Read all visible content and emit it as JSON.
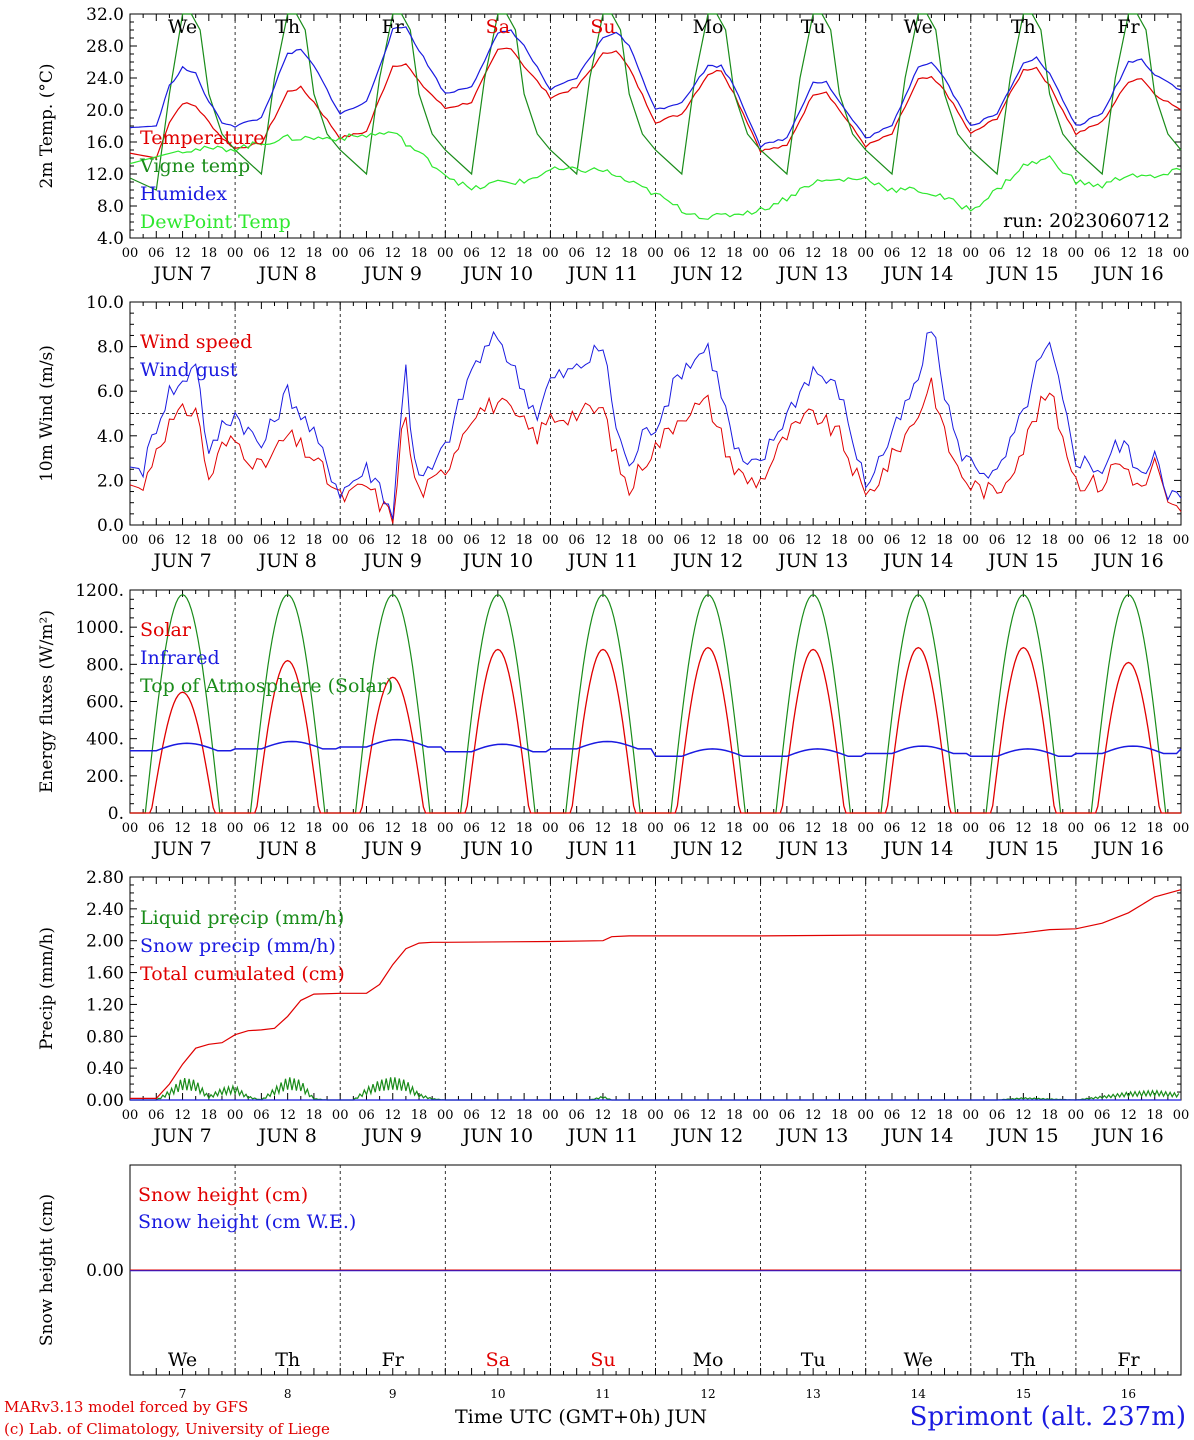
{
  "days": [
    {
      "dow": "We",
      "date": "JUN 7",
      "num": "7",
      "weekend": false
    },
    {
      "dow": "Th",
      "date": "JUN 8",
      "num": "8",
      "weekend": false
    },
    {
      "dow": "Fr",
      "date": "JUN 9",
      "num": "9",
      "weekend": false
    },
    {
      "dow": "Sa",
      "date": "JUN 10",
      "num": "10",
      "weekend": true
    },
    {
      "dow": "Su",
      "date": "JUN 11",
      "num": "11",
      "weekend": true
    },
    {
      "dow": "Mo",
      "date": "JUN 12",
      "num": "12",
      "weekend": false
    },
    {
      "dow": "Tu",
      "date": "JUN 13",
      "num": "13",
      "weekend": false
    },
    {
      "dow": "We",
      "date": "JUN 14",
      "num": "14",
      "weekend": false
    },
    {
      "dow": "Th",
      "date": "JUN 15",
      "num": "15",
      "weekend": false
    },
    {
      "dow": "Fr",
      "date": "JUN 16",
      "num": "16",
      "weekend": false
    }
  ],
  "hour_ticks": [
    "00",
    "06",
    "12",
    "18"
  ],
  "colors": {
    "red": "#e00000",
    "blue": "#1a1ae0",
    "green": "#1a8c1a",
    "lightgreen": "#2ee82e",
    "purple": "#8000a0"
  },
  "footer": {
    "credit_line1": "MARv3.13 model forced by GFS",
    "credit_line2": "(c) Lab. of Climatology, University of Liege",
    "x_axis_title": "Time UTC (GMT+0h)",
    "month": "JUN",
    "station": "Sprimont (alt. 237m)"
  },
  "chart_data": [
    {
      "type": "line",
      "ylabel": "2m Temp. (°C)",
      "ylim": [
        4,
        32
      ],
      "yticks": [
        "4.0",
        "8.0",
        "12.0",
        "16.0",
        "20.0",
        "24.0",
        "28.0",
        "32.0"
      ],
      "run_label": "run: 2023060712",
      "x_unit": "hours since JUN 7 00 UTC",
      "series": [
        {
          "name": "Temperature",
          "color": "#e00000",
          "x": [
            0,
            6,
            9,
            12,
            15,
            18,
            21,
            24,
            30,
            36,
            39,
            42,
            48,
            54,
            60,
            63,
            66,
            72,
            78,
            84,
            87,
            90,
            96,
            102,
            108,
            111,
            114,
            120,
            126,
            132,
            135,
            138,
            144,
            150,
            156,
            159,
            162,
            168,
            174,
            180,
            183,
            186,
            192,
            198,
            204,
            207,
            210,
            216,
            222,
            228,
            231,
            234,
            240
          ],
          "y": [
            14.6,
            14.0,
            18.5,
            20.9,
            20.5,
            18.5,
            16.5,
            15.2,
            15.8,
            22.3,
            22.8,
            21.0,
            16.5,
            17.3,
            25.5,
            25.8,
            23.5,
            20.2,
            21.0,
            27.5,
            27.8,
            25.5,
            21.6,
            22.8,
            27.0,
            27.5,
            25.2,
            18.5,
            19.5,
            24.5,
            25.0,
            22.0,
            14.9,
            15.5,
            22.0,
            22.3,
            20.0,
            15.5,
            17.0,
            23.8,
            24.0,
            22.5,
            17.0,
            19.0,
            25.0,
            25.3,
            23.0,
            17.0,
            18.5,
            23.6,
            24.0,
            22.0,
            20.0
          ]
        },
        {
          "name": "Vigne temp",
          "color": "#1a8c1a",
          "x": [
            0,
            6,
            9,
            12,
            14,
            16,
            18,
            21,
            24,
            30,
            33,
            36,
            38,
            40,
            42,
            45,
            48,
            54,
            57,
            60,
            62,
            64,
            66,
            69,
            72,
            78,
            81,
            84,
            86,
            88,
            90,
            93,
            96,
            102,
            105,
            108,
            110,
            112,
            114,
            117,
            120,
            126,
            129,
            132,
            134,
            136,
            138,
            141,
            144,
            150,
            153,
            156,
            158,
            160,
            162,
            165,
            168,
            174,
            177,
            180,
            182,
            184,
            186,
            189,
            192,
            198,
            201,
            204,
            206,
            208,
            210,
            213,
            216,
            222,
            225,
            228,
            230,
            232,
            234,
            237,
            240
          ],
          "y": [
            11.5,
            10.0,
            22.0,
            32.0,
            33.0,
            30.0,
            22.0,
            17.0,
            15.0,
            12.0,
            24.0,
            32.0,
            33.0,
            30.0,
            22.0,
            17.0,
            15.0,
            12.0,
            24.0,
            32.0,
            33.0,
            30.0,
            22.0,
            17.0,
            15.0,
            12.0,
            24.0,
            32.0,
            33.0,
            30.0,
            22.0,
            17.0,
            15.0,
            12.0,
            24.0,
            32.0,
            33.0,
            30.0,
            22.0,
            17.0,
            15.0,
            12.0,
            24.0,
            32.0,
            33.0,
            30.0,
            22.0,
            17.0,
            15.0,
            12.0,
            24.0,
            32.0,
            33.0,
            30.0,
            22.0,
            17.0,
            15.0,
            12.0,
            24.0,
            32.0,
            33.0,
            30.0,
            22.0,
            17.0,
            15.0,
            12.0,
            24.0,
            32.0,
            33.0,
            30.0,
            22.0,
            17.0,
            15.0,
            12.0,
            24.0,
            32.0,
            33.0,
            30.0,
            22.0,
            17.0,
            15.0
          ]
        },
        {
          "name": "Humidex",
          "color": "#1a1ae0",
          "x": [
            0,
            6,
            9,
            12,
            15,
            18,
            21,
            24,
            30,
            36,
            39,
            42,
            48,
            54,
            60,
            63,
            66,
            72,
            78,
            84,
            87,
            90,
            96,
            102,
            108,
            111,
            114,
            120,
            126,
            132,
            135,
            138,
            144,
            150,
            156,
            159,
            162,
            168,
            174,
            180,
            183,
            186,
            192,
            198,
            204,
            207,
            210,
            216,
            222,
            228,
            231,
            234,
            240
          ],
          "y": [
            17.8,
            18.0,
            23.0,
            25.3,
            24.5,
            21.0,
            18.5,
            18.0,
            19.0,
            27.0,
            27.5,
            25.5,
            19.5,
            21.0,
            30.0,
            30.4,
            27.5,
            22.0,
            23.0,
            29.5,
            30.0,
            28.0,
            22.5,
            24.0,
            29.0,
            29.8,
            28.0,
            20.0,
            21.0,
            25.5,
            25.5,
            23.0,
            15.5,
            16.5,
            23.5,
            23.5,
            21.0,
            16.5,
            18.0,
            25.5,
            26.0,
            24.0,
            18.0,
            19.5,
            26.0,
            26.5,
            24.5,
            18.0,
            19.5,
            26.0,
            26.3,
            24.5,
            22.5
          ]
        },
        {
          "name": "DewPoint Temp",
          "color": "#2ee82e",
          "x": [
            0,
            12,
            24,
            36,
            48,
            60,
            72,
            78,
            84,
            90,
            96,
            108,
            120,
            126,
            132,
            138,
            144,
            150,
            156,
            168,
            174,
            180,
            186,
            192,
            198,
            204,
            210,
            216,
            222,
            228,
            234,
            240
          ],
          "y": [
            13.3,
            15.0,
            15.2,
            16.5,
            16.5,
            17.2,
            12.0,
            10.0,
            11.0,
            11.0,
            12.5,
            12.5,
            9.5,
            7.5,
            6.5,
            7.0,
            7.5,
            9.0,
            11.0,
            11.5,
            10.0,
            10.0,
            9.0,
            7.5,
            10.0,
            13.0,
            14.0,
            11.0,
            10.5,
            12.0,
            11.5,
            12.5
          ]
        }
      ]
    },
    {
      "type": "line",
      "ylabel": "10m Wind (m/s)",
      "ylim": [
        0,
        10
      ],
      "yticks": [
        "0.0",
        "2.0",
        "4.0",
        "6.0",
        "8.0",
        "10.0"
      ],
      "reference_line": 5.0,
      "x_unit": "hours since JUN 7 00 UTC",
      "series": [
        {
          "name": "Wind speed",
          "color": "#e00000",
          "x": [
            0,
            3,
            6,
            9,
            12,
            15,
            18,
            21,
            24,
            30,
            36,
            42,
            48,
            51,
            54,
            57,
            60,
            62,
            63,
            64,
            66,
            69,
            72,
            78,
            84,
            90,
            93,
            96,
            102,
            108,
            111,
            114,
            117,
            120,
            126,
            132,
            135,
            138,
            141,
            144,
            150,
            156,
            162,
            168,
            174,
            180,
            183,
            186,
            189,
            192,
            198,
            204,
            207,
            210,
            216,
            222,
            225,
            228,
            231,
            234,
            237,
            240
          ],
          "y": [
            1.8,
            1.6,
            3.5,
            4.5,
            5.0,
            5.3,
            2.0,
            3.5,
            3.8,
            2.5,
            4.0,
            3.0,
            1.2,
            1.4,
            1.8,
            1.0,
            0.3,
            4.0,
            5.0,
            3.0,
            1.5,
            1.8,
            2.5,
            5.0,
            5.5,
            4.5,
            4.0,
            4.8,
            5.0,
            5.2,
            3.0,
            1.5,
            2.8,
            3.5,
            5.0,
            5.5,
            4.0,
            2.5,
            2.0,
            2.0,
            4.0,
            5.0,
            4.0,
            1.2,
            3.0,
            5.0,
            6.5,
            4.0,
            2.5,
            1.8,
            1.4,
            3.5,
            5.0,
            6.0,
            2.0,
            1.8,
            2.8,
            2.5,
            1.5,
            2.8,
            0.8,
            0.6
          ]
        },
        {
          "name": "Wind gust",
          "color": "#1a1ae0",
          "x": [
            0,
            3,
            6,
            9,
            12,
            15,
            18,
            21,
            24,
            30,
            36,
            42,
            48,
            51,
            54,
            57,
            60,
            62,
            63,
            64,
            66,
            69,
            72,
            78,
            84,
            90,
            93,
            96,
            102,
            108,
            111,
            114,
            117,
            120,
            126,
            132,
            135,
            138,
            141,
            144,
            150,
            156,
            162,
            168,
            174,
            180,
            183,
            186,
            189,
            192,
            198,
            204,
            207,
            210,
            216,
            222,
            225,
            228,
            231,
            234,
            237,
            240
          ],
          "y": [
            2.6,
            2.5,
            4.5,
            6.0,
            6.3,
            7.5,
            3.0,
            4.5,
            5.0,
            3.5,
            6.0,
            4.0,
            1.5,
            2.0,
            2.5,
            1.8,
            0.5,
            5.0,
            7.5,
            4.5,
            2.0,
            2.5,
            3.5,
            7.0,
            8.5,
            6.0,
            5.0,
            6.5,
            7.0,
            8.0,
            4.5,
            2.5,
            4.0,
            4.5,
            7.0,
            8.0,
            6.0,
            3.5,
            2.5,
            2.8,
            5.0,
            7.0,
            6.0,
            1.8,
            4.0,
            6.5,
            9.0,
            6.0,
            3.5,
            2.8,
            2.2,
            5.0,
            7.0,
            8.0,
            3.0,
            2.5,
            3.5,
            3.5,
            2.0,
            3.5,
            1.5,
            1.2
          ]
        }
      ]
    },
    {
      "type": "line",
      "ylabel": "Energy fluxes (W/m²)",
      "ylim": [
        0,
        1200
      ],
      "yticks": [
        "0.",
        "200.",
        "400.",
        "600.",
        "800.",
        "1000.",
        "1200."
      ],
      "x_unit": "hours since JUN 7 00 UTC",
      "daily_peak_hour": 12,
      "solar_daily_peak": [
        650,
        820,
        730,
        880,
        880,
        890,
        880,
        890,
        890,
        810
      ],
      "toa_daily_peak": [
        1175,
        1175,
        1175,
        1175,
        1175,
        1175,
        1175,
        1175,
        1175,
        1175
      ],
      "infrared_daily_mean": [
        360,
        370,
        380,
        355,
        370,
        330,
        330,
        345,
        330,
        345
      ],
      "series": [
        {
          "name": "Solar",
          "color": "#e00000"
        },
        {
          "name": "Infrared",
          "color": "#1a1ae0"
        },
        {
          "name": "Top of Atmosphere (Solar)",
          "color": "#1a8c1a"
        }
      ]
    },
    {
      "type": "line",
      "ylabel": "Precip (mm/h)",
      "ylim": [
        0,
        2.8
      ],
      "yticks": [
        "0.00",
        "0.40",
        "0.80",
        "1.20",
        "1.60",
        "2.00",
        "2.40",
        "2.80"
      ],
      "x_unit": "hours since JUN 7 00 UTC",
      "series": [
        {
          "name": "Liquid precip (mm/h)",
          "color": "#1a8c1a",
          "x": [
            0,
            6,
            9,
            12,
            15,
            18,
            21,
            24,
            27,
            30,
            33,
            36,
            39,
            42,
            45,
            48,
            51,
            54,
            57,
            60,
            63,
            66,
            69,
            72,
            96,
            105,
            108,
            110,
            180,
            198,
            204,
            216,
            222,
            228,
            234,
            240
          ],
          "y": [
            0,
            0,
            0.12,
            0.28,
            0.25,
            0.05,
            0.15,
            0.18,
            0.05,
            0,
            0.15,
            0.29,
            0.25,
            0.02,
            0,
            0,
            0,
            0.15,
            0.25,
            0.29,
            0.25,
            0.08,
            0.02,
            0,
            0,
            0,
            0.05,
            0,
            0,
            0,
            0.03,
            0,
            0.05,
            0.1,
            0.12,
            0.08
          ]
        },
        {
          "name": "Snow precip (mm/h)",
          "color": "#1a1ae0",
          "x": [
            0,
            240
          ],
          "y": [
            0,
            0
          ]
        },
        {
          "name": "Total cumulated (cm)",
          "color": "#e00000",
          "x": [
            0,
            6,
            9,
            12,
            15,
            18,
            21,
            24,
            27,
            30,
            33,
            36,
            39,
            42,
            48,
            54,
            57,
            60,
            63,
            66,
            69,
            72,
            96,
            108,
            110,
            114,
            120,
            144,
            168,
            198,
            204,
            210,
            216,
            222,
            228,
            234,
            240
          ],
          "y": [
            0.02,
            0.02,
            0.2,
            0.45,
            0.65,
            0.7,
            0.72,
            0.82,
            0.87,
            0.88,
            0.9,
            1.05,
            1.25,
            1.33,
            1.34,
            1.34,
            1.45,
            1.7,
            1.9,
            1.97,
            1.98,
            1.98,
            1.99,
            2.0,
            2.05,
            2.06,
            2.06,
            2.06,
            2.07,
            2.07,
            2.1,
            2.14,
            2.15,
            2.22,
            2.35,
            2.55,
            2.64
          ]
        }
      ]
    },
    {
      "type": "line",
      "ylabel": "Snow height (cm)",
      "yticks": [
        "0.00"
      ],
      "x_unit": "hours since JUN 7 00 UTC",
      "series": [
        {
          "name": "Snow height (cm)",
          "color": "#e00000",
          "x": [
            0,
            240
          ],
          "y": [
            0,
            0
          ]
        },
        {
          "name": "Snow height (cm W.E.)",
          "color": "#1a1ae0",
          "x": [
            0,
            240
          ],
          "y": [
            0,
            0
          ]
        }
      ]
    }
  ]
}
